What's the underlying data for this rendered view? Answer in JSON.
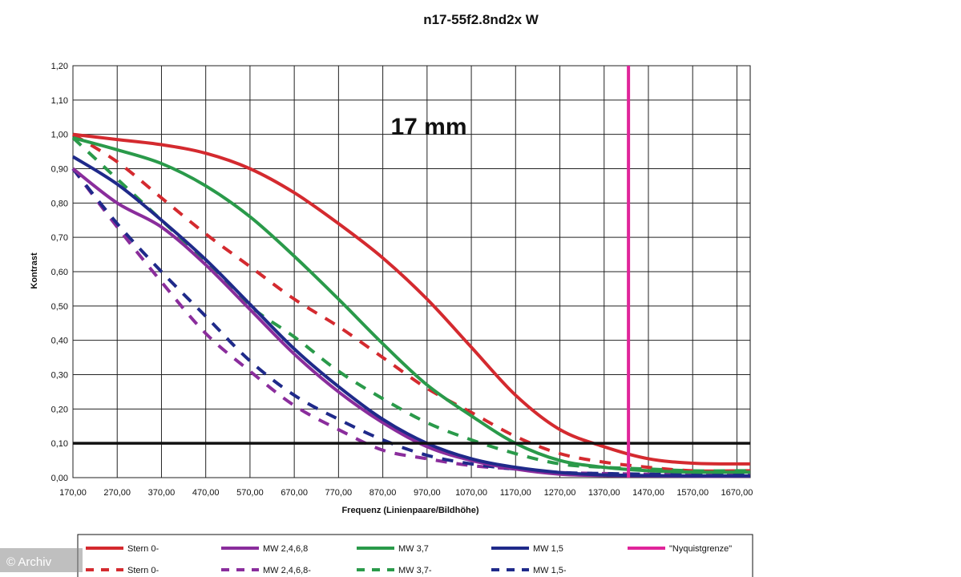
{
  "chart_data": {
    "type": "line",
    "title": "n17-55f2.8nd2x W",
    "annotation": "17 mm",
    "xlabel": "Frequenz (Linienpaare/Bildhöhe)",
    "ylabel": "Kontrast",
    "xlim": [
      170,
      1700
    ],
    "ylim": [
      0,
      1.2
    ],
    "x_ticks": [
      "170,00",
      "270,00",
      "370,00",
      "470,00",
      "570,00",
      "670,00",
      "770,00",
      "870,00",
      "970,00",
      "1070,00",
      "1170,00",
      "1270,00",
      "1370,00",
      "1470,00",
      "1570,00",
      "1670,00"
    ],
    "y_ticks": [
      "0,00",
      "0,10",
      "0,20",
      "0,30",
      "0,40",
      "0,50",
      "0,60",
      "0,70",
      "0,80",
      "0,90",
      "1,00",
      "1,10",
      "1,20"
    ],
    "grid": true,
    "reference_line": {
      "y": 0.1,
      "color": "#111111"
    },
    "nyquist": {
      "name": "\"Nyquistgrenze\"",
      "x": 1425,
      "color": "#e0259a"
    },
    "series": [
      {
        "name": "Stern 0-",
        "color": "#d42a2f",
        "dash": false,
        "x": [
          170,
          270,
          370,
          470,
          570,
          670,
          770,
          870,
          970,
          1070,
          1170,
          1270,
          1370,
          1470,
          1570,
          1670,
          1700
        ],
        "y": [
          1.0,
          0.985,
          0.97,
          0.945,
          0.9,
          0.83,
          0.74,
          0.64,
          0.52,
          0.38,
          0.24,
          0.14,
          0.09,
          0.055,
          0.042,
          0.04,
          0.04
        ]
      },
      {
        "name": "MW 2,4,6,8",
        "color": "#8a2d9c",
        "dash": false,
        "x": [
          170,
          270,
          370,
          470,
          570,
          670,
          770,
          870,
          970,
          1070,
          1170,
          1270,
          1370,
          1470,
          1570,
          1670,
          1700
        ],
        "y": [
          0.9,
          0.8,
          0.73,
          0.62,
          0.49,
          0.36,
          0.25,
          0.16,
          0.09,
          0.05,
          0.025,
          0.01,
          0.006,
          0.005,
          0.004,
          0.004,
          0.004
        ]
      },
      {
        "name": "MW 3,7",
        "color": "#2a9a4a",
        "dash": false,
        "x": [
          170,
          270,
          370,
          470,
          570,
          670,
          770,
          870,
          970,
          1070,
          1170,
          1270,
          1370,
          1470,
          1570,
          1670,
          1700
        ],
        "y": [
          0.99,
          0.955,
          0.915,
          0.85,
          0.76,
          0.645,
          0.52,
          0.39,
          0.27,
          0.18,
          0.1,
          0.05,
          0.03,
          0.02,
          0.016,
          0.016,
          0.016
        ]
      },
      {
        "name": "MW 1,5",
        "color": "#1f2a8a",
        "dash": false,
        "x": [
          170,
          270,
          370,
          470,
          570,
          670,
          770,
          870,
          970,
          1070,
          1170,
          1270,
          1370,
          1470,
          1570,
          1670,
          1700
        ],
        "y": [
          0.935,
          0.855,
          0.75,
          0.635,
          0.505,
          0.375,
          0.265,
          0.17,
          0.1,
          0.055,
          0.03,
          0.015,
          0.008,
          0.006,
          0.005,
          0.005,
          0.005
        ]
      },
      {
        "name": "Stern 0-",
        "color": "#d42a2f",
        "dash": true,
        "x": [
          170,
          270,
          370,
          470,
          570,
          670,
          770,
          870,
          970,
          1070,
          1170,
          1270,
          1370,
          1470,
          1570,
          1670,
          1700
        ],
        "y": [
          1.0,
          0.92,
          0.815,
          0.71,
          0.615,
          0.52,
          0.44,
          0.35,
          0.26,
          0.19,
          0.12,
          0.07,
          0.045,
          0.03,
          0.02,
          0.02,
          0.02
        ]
      },
      {
        "name": "MW 2,4,6,8-",
        "color": "#8a2d9c",
        "dash": true,
        "x": [
          170,
          270,
          370,
          470,
          570,
          670,
          770,
          870,
          970,
          1070,
          1170,
          1270,
          1370,
          1470,
          1570,
          1670,
          1700
        ],
        "y": [
          0.9,
          0.73,
          0.57,
          0.42,
          0.31,
          0.21,
          0.14,
          0.08,
          0.055,
          0.035,
          0.025,
          0.015,
          0.012,
          0.01,
          0.01,
          0.01,
          0.01
        ]
      },
      {
        "name": "MW 3,7-",
        "color": "#2a9a4a",
        "dash": true,
        "x": [
          170,
          270,
          370,
          470,
          570,
          670,
          770,
          870,
          970,
          1070,
          1170,
          1270,
          1370,
          1470,
          1570,
          1670,
          1700
        ],
        "y": [
          0.99,
          0.87,
          0.75,
          0.63,
          0.5,
          0.41,
          0.31,
          0.23,
          0.16,
          0.11,
          0.07,
          0.04,
          0.03,
          0.025,
          0.02,
          0.02,
          0.02
        ]
      },
      {
        "name": "MW 1,5-",
        "color": "#1f2a8a",
        "dash": true,
        "x": [
          170,
          270,
          370,
          470,
          570,
          670,
          770,
          870,
          970,
          1070,
          1170,
          1270,
          1370,
          1470,
          1570,
          1670,
          1700
        ],
        "y": [
          0.9,
          0.74,
          0.6,
          0.47,
          0.34,
          0.24,
          0.17,
          0.11,
          0.065,
          0.04,
          0.025,
          0.015,
          0.012,
          0.01,
          0.01,
          0.01,
          0.01
        ]
      }
    ],
    "legend": {
      "placement": "bottom"
    }
  },
  "watermark": "© Archiv"
}
